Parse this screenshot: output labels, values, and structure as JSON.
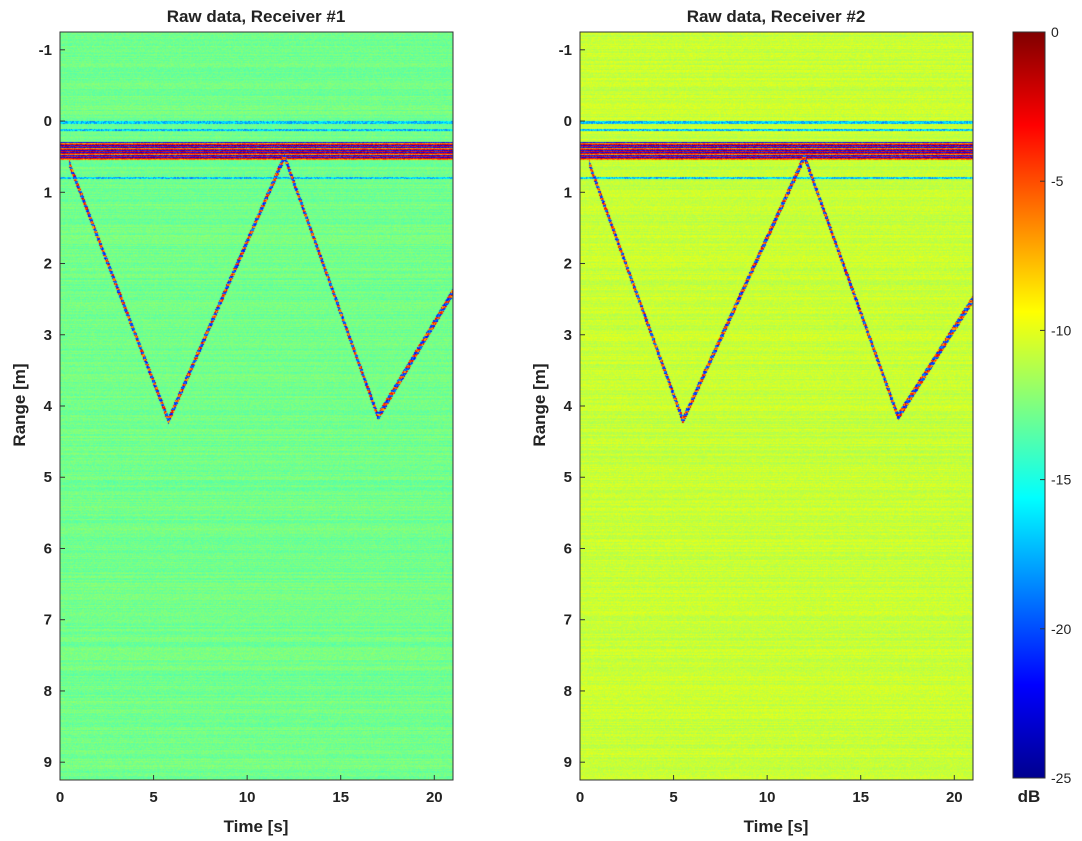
{
  "chart_data": [
    {
      "type": "heatmap",
      "title": "Raw data, Receiver #1",
      "xlabel": "Time [s]",
      "ylabel": "Range [m]",
      "xlim": [
        0,
        21
      ],
      "ylim": [
        -1.25,
        9.25
      ],
      "y_reversed": true,
      "xticks": [
        0,
        5,
        10,
        15,
        20
      ],
      "yticks": [
        -1,
        0,
        1,
        2,
        3,
        4,
        5,
        6,
        7,
        8,
        9
      ],
      "background_db": -12.8,
      "direct_coupling_bands_m": [
        0.3,
        0.55
      ],
      "grid": false,
      "trajectory": {
        "description_points": [
          {
            "t": 0.5,
            "r": 0.6
          },
          {
            "t": 5.8,
            "r": 4.2
          },
          {
            "t": 12.0,
            "r": 0.5
          },
          {
            "t": 17.0,
            "r": 4.15
          },
          {
            "t": 21.0,
            "r": 2.4
          }
        ]
      }
    },
    {
      "type": "heatmap",
      "title": "Raw data, Receiver #2",
      "xlabel": "Time [s]",
      "ylabel": "Range [m]",
      "xlim": [
        0,
        21
      ],
      "ylim": [
        -1.25,
        9.25
      ],
      "y_reversed": true,
      "xticks": [
        0,
        5,
        10,
        15,
        20
      ],
      "yticks": [
        -1,
        0,
        1,
        2,
        3,
        4,
        5,
        6,
        7,
        8,
        9
      ],
      "background_db": -10.7,
      "direct_coupling_bands_m": [
        0.3,
        0.55
      ],
      "grid": false,
      "trajectory": {
        "description_points": [
          {
            "t": 0.5,
            "r": 0.6
          },
          {
            "t": 5.5,
            "r": 4.2
          },
          {
            "t": 12.0,
            "r": 0.5
          },
          {
            "t": 17.0,
            "r": 4.15
          },
          {
            "t": 21.0,
            "r": 2.5
          }
        ]
      }
    }
  ],
  "colorbar": {
    "colormap": "jet",
    "range": [
      -25,
      0
    ],
    "ticks": [
      0,
      -5,
      -10,
      -15,
      -20,
      -25
    ],
    "label": "dB"
  }
}
